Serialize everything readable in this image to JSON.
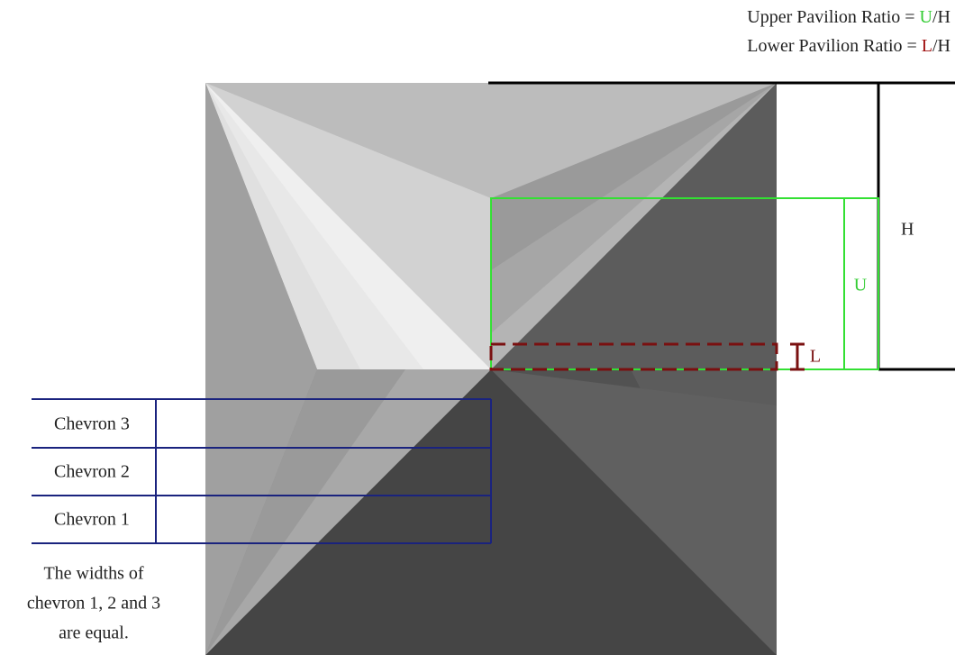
{
  "legend": {
    "upper": {
      "prefix": "Upper Pavilion Ratio = ",
      "letter": "U",
      "suffix": "/H"
    },
    "lower": {
      "prefix": "Lower Pavilion Ratio = ",
      "letter": "L",
      "suffix": "/H"
    }
  },
  "labels": {
    "h": "H",
    "u": "U",
    "l": "L"
  },
  "chevrons": [
    "Chevron 3",
    "Chevron 2",
    "Chevron 1"
  ],
  "note": [
    "The widths of",
    "chevron 1, 2 and 3",
    "are equal."
  ]
}
